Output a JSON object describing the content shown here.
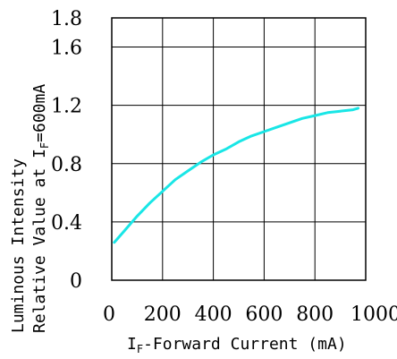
{
  "chart_data": {
    "type": "line",
    "xlabel": {
      "main": "I",
      "sub": "F",
      "rest": "-Forward Current (mA)"
    },
    "ylabel": {
      "line1": "Luminous Intensity",
      "line2_prefix": "Relative Value at ",
      "line2_main": "I",
      "line2_sub": "F",
      "line2_rest": "=600mA"
    },
    "x_ticks": [
      "0",
      "200",
      "400",
      "600",
      "800",
      "1000"
    ],
    "y_ticks": [
      "0",
      "0.4",
      "0.8",
      "1.2",
      "1.6",
      "1.8"
    ],
    "xlim": [
      0,
      1000
    ],
    "ylim": [
      0,
      1.8
    ],
    "grid": true,
    "series": [
      {
        "color": "#19e6e6",
        "x": [
          10,
          50,
          100,
          150,
          200,
          250,
          300,
          350,
          400,
          450,
          500,
          550,
          600,
          650,
          700,
          750,
          800,
          850,
          900,
          950,
          970
        ],
        "y": [
          0.26,
          0.34,
          0.44,
          0.53,
          0.61,
          0.69,
          0.75,
          0.81,
          0.86,
          0.9,
          0.95,
          0.99,
          1.02,
          1.05,
          1.08,
          1.11,
          1.13,
          1.15,
          1.16,
          1.17,
          1.18
        ]
      }
    ]
  }
}
